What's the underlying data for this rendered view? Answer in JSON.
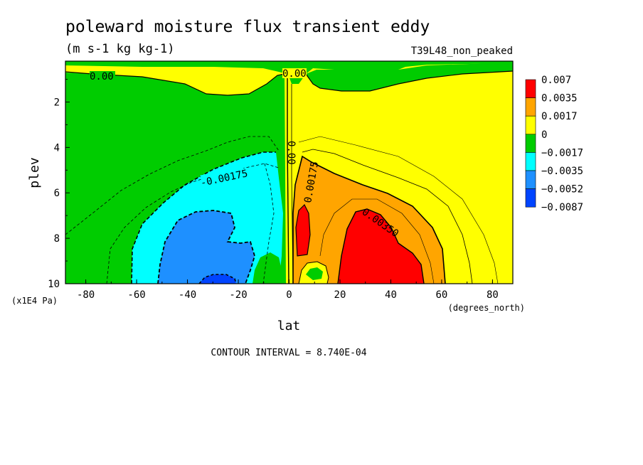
{
  "chart_data": {
    "type": "heatmap",
    "title": "poleward moisture flux transient eddy",
    "units": "(m s-1 kg kg-1)",
    "run_label": "T39L48_non_peaked",
    "xlabel": "lat",
    "x_units": "(degrees_north)",
    "ylabel": "plev",
    "y_units": "(x1E4 Pa)",
    "x_ticks": [
      "-80",
      "-60",
      "-40",
      "-20",
      "0",
      "20",
      "40",
      "60",
      "80"
    ],
    "y_ticks": [
      "2",
      "4",
      "6",
      "8",
      "10"
    ],
    "xlim": [
      -88,
      88
    ],
    "ylim": [
      0.2,
      10
    ],
    "y_inverted": true,
    "contour_interval_text": "CONTOUR INTERVAL = 8.740E-04",
    "contour_labels": [
      "0.00",
      "0.00",
      "0.00",
      "-0.00175",
      "0.00175",
      "0.00350"
    ],
    "legend": {
      "labels": [
        "0.007",
        "0.0035",
        "0.0017",
        "0",
        "−0.0017",
        "−0.0035",
        "−0.0052",
        "−0.0087"
      ],
      "colors": [
        "#ff0000",
        "#ffa500",
        "#ffff00",
        "#00cc00",
        "#00ffff",
        "#1e90ff",
        "#0044ff"
      ]
    },
    "regions": [
      {
        "level": "0 to 0.0017",
        "color": "#ffff00",
        "description_value": 0.0008
      },
      {
        "level": "0 to -0.0017",
        "color": "#00cc00",
        "description_value": -0.0008
      },
      {
        "level": "-0.0017 to -0.0035",
        "color": "#00ffff",
        "description_value": -0.0026
      },
      {
        "level": "-0.0035 to -0.0052",
        "color": "#1e90ff",
        "description_value": -0.0044
      },
      {
        "level": "-0.0052 to -0.0087",
        "color": "#0044ff",
        "description_value": -0.006
      },
      {
        "level": "0.0017 to 0.0035",
        "color": "#ffa500",
        "description_value": 0.0026
      },
      {
        "level": "0.0035 to 0.007",
        "color": "#ff0000",
        "description_value": 0.0045
      }
    ]
  }
}
